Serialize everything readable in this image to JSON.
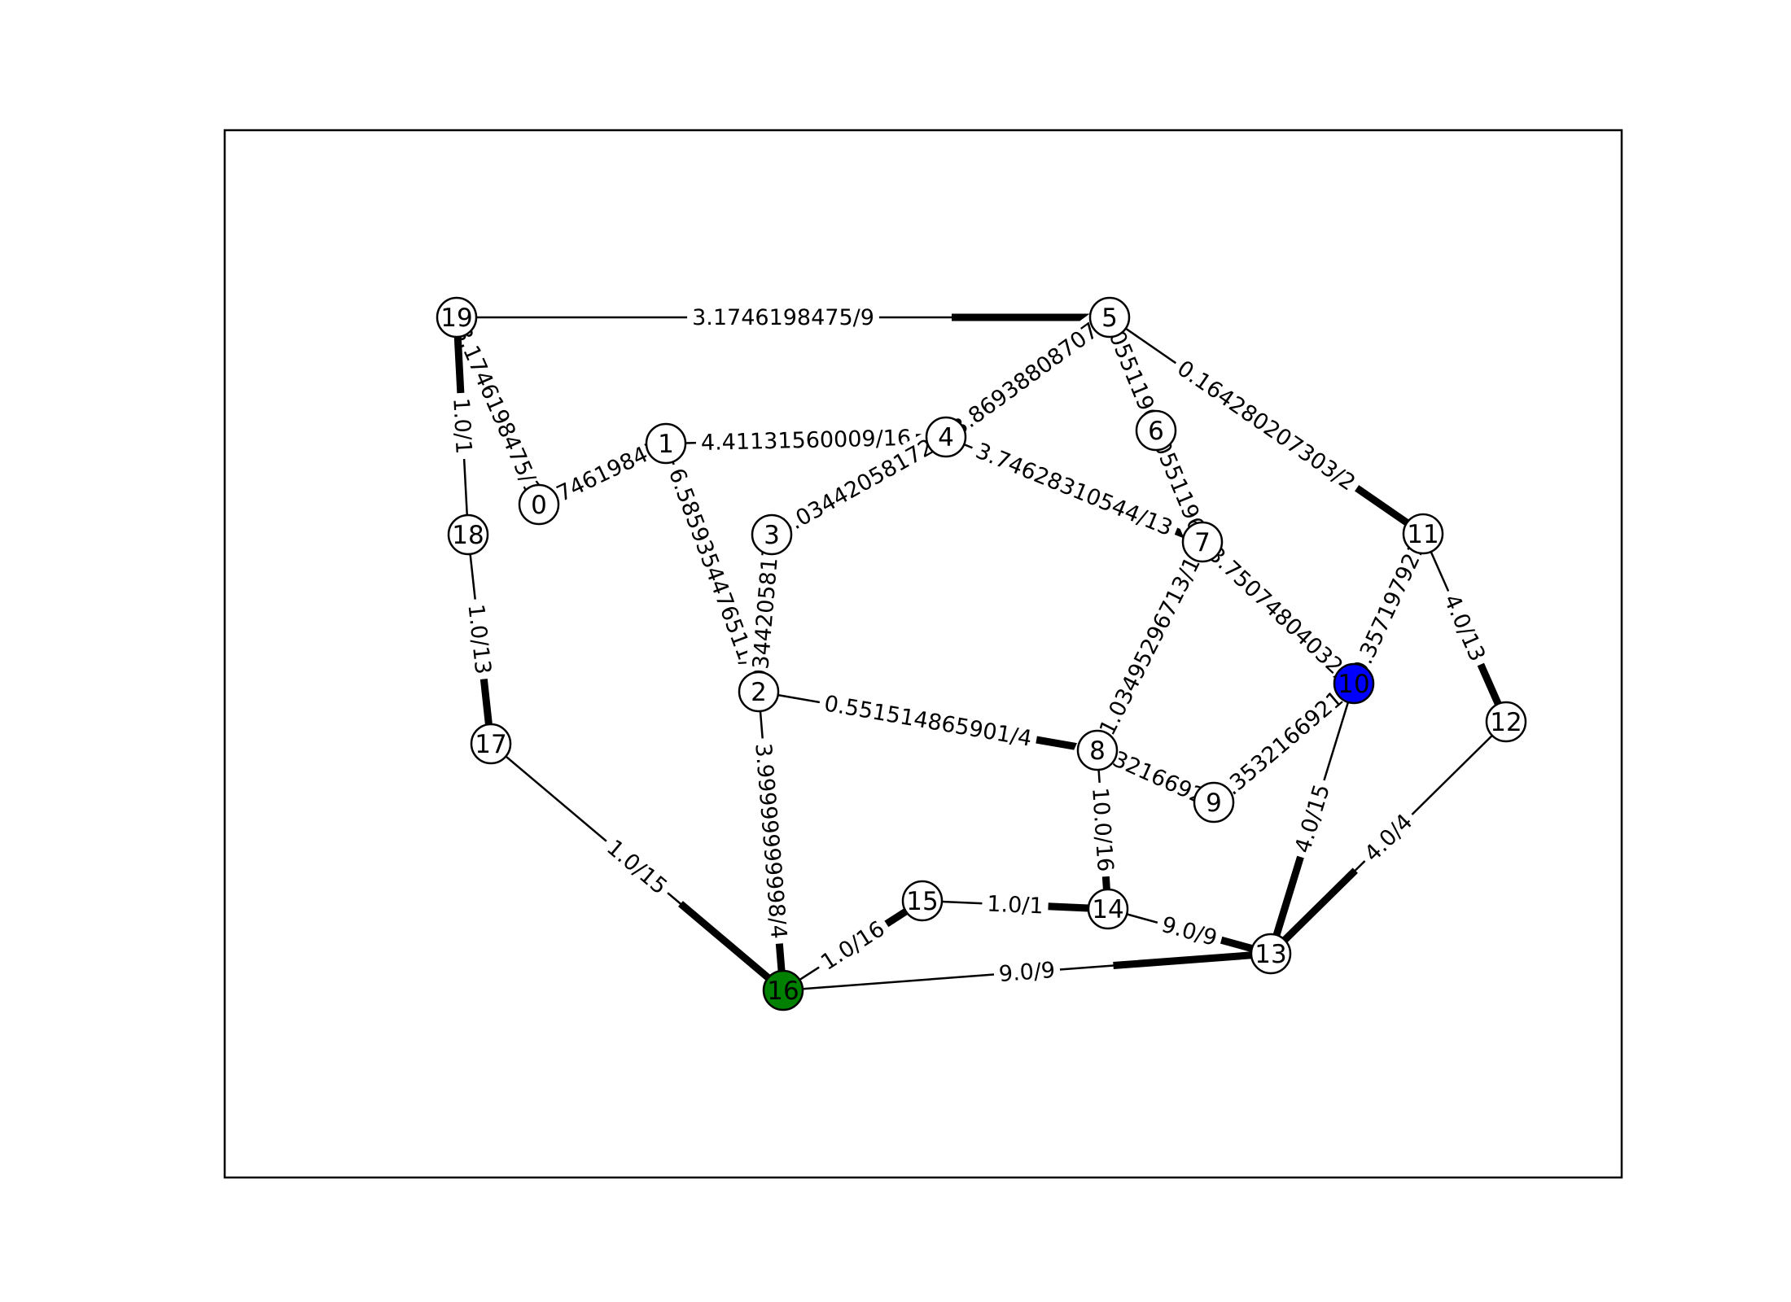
{
  "graph": {
    "nodes": [
      {
        "id": "0",
        "color": "#ffffff"
      },
      {
        "id": "1",
        "color": "#ffffff"
      },
      {
        "id": "2",
        "color": "#ffffff"
      },
      {
        "id": "3",
        "color": "#ffffff"
      },
      {
        "id": "4",
        "color": "#ffffff"
      },
      {
        "id": "5",
        "color": "#ffffff"
      },
      {
        "id": "6",
        "color": "#ffffff"
      },
      {
        "id": "7",
        "color": "#ffffff"
      },
      {
        "id": "8",
        "color": "#ffffff"
      },
      {
        "id": "9",
        "color": "#ffffff"
      },
      {
        "id": "10",
        "color": "#0000ff"
      },
      {
        "id": "11",
        "color": "#ffffff"
      },
      {
        "id": "12",
        "color": "#ffffff"
      },
      {
        "id": "13",
        "color": "#ffffff"
      },
      {
        "id": "14",
        "color": "#ffffff"
      },
      {
        "id": "15",
        "color": "#ffffff"
      },
      {
        "id": "16",
        "color": "#008000"
      },
      {
        "id": "17",
        "color": "#ffffff"
      },
      {
        "id": "18",
        "color": "#ffffff"
      },
      {
        "id": "19",
        "color": "#ffffff"
      }
    ],
    "edges": [
      {
        "source": "19",
        "target": "5",
        "label": "3.1746198475/9",
        "flow": 3.1746198475,
        "capacity": 9
      },
      {
        "source": "19",
        "target": "0",
        "label": "3.1746198475/1",
        "flow": 3.1746198475,
        "capacity": 1
      },
      {
        "source": "18",
        "target": "19",
        "label": "1.0/1",
        "flow": 1.0,
        "capacity": 1
      },
      {
        "source": "0",
        "target": "1",
        "label": "3.1746198475/",
        "flow": 3.1746198475,
        "capacity": null
      },
      {
        "source": "1",
        "target": "4",
        "label": "4.41131560009/16",
        "flow": 4.41131560009,
        "capacity": 16
      },
      {
        "source": "1",
        "target": "2",
        "label": "6.5859354476511/",
        "flow": 6.5859354476511,
        "capacity": null
      },
      {
        "source": "3",
        "target": "4",
        "label": "5.03442058172/",
        "flow": 5.03442058172,
        "capacity": null
      },
      {
        "source": "3",
        "target": "2",
        "label": "5.03442058172/",
        "flow": 5.03442058172,
        "capacity": null
      },
      {
        "source": "4",
        "target": "5",
        "label": "3.86938808707/",
        "flow": 3.86938808707,
        "capacity": null
      },
      {
        "source": "4",
        "target": "7",
        "label": "3.74628310544/13",
        "flow": 3.74628310544,
        "capacity": 13
      },
      {
        "source": "5",
        "target": "6",
        "label": "1.05511967",
        "flow": 1.05511967,
        "capacity": null
      },
      {
        "source": "5",
        "target": "11",
        "label": "0.164280207303/2",
        "flow": 0.164280207303,
        "capacity": 2
      },
      {
        "source": "6",
        "target": "7",
        "label": "1.05511967/",
        "flow": 1.05511967,
        "capacity": null
      },
      {
        "source": "7",
        "target": "10",
        "label": "3.75074804032/",
        "flow": 3.75074804032,
        "capacity": null
      },
      {
        "source": "7",
        "target": "8",
        "label": "1.03495296713/1",
        "flow": 1.03495296713,
        "capacity": 1
      },
      {
        "source": "11",
        "target": "10",
        "label": "0.357197921",
        "flow": 0.357197921,
        "capacity": null
      },
      {
        "source": "11",
        "target": "12",
        "label": "4.0/13",
        "flow": 4.0,
        "capacity": 13
      },
      {
        "source": "2",
        "target": "8",
        "label": "0.551514865901/4",
        "flow": 0.551514865901,
        "capacity": 4
      },
      {
        "source": "8",
        "target": "9",
        "label": "7.5321669215",
        "flow": 7.5321669215,
        "capacity": null
      },
      {
        "source": "9",
        "target": "10",
        "label": "1.35321669215",
        "flow": 1.35321669215,
        "capacity": null
      },
      {
        "source": "2",
        "target": "16",
        "label": "3.99999999998/4",
        "flow": 3.99999999998,
        "capacity": 4
      },
      {
        "source": "8",
        "target": "14",
        "label": "10.0/16",
        "flow": 10.0,
        "capacity": 16
      },
      {
        "source": "10",
        "target": "13",
        "label": "4.0/15",
        "flow": 4.0,
        "capacity": 15
      },
      {
        "source": "12",
        "target": "13",
        "label": "4.0/4",
        "flow": 4.0,
        "capacity": 4
      },
      {
        "source": "18",
        "target": "17",
        "label": "1.0/13",
        "flow": 1.0,
        "capacity": 13
      },
      {
        "source": "17",
        "target": "16",
        "label": "1.0/15",
        "flow": 1.0,
        "capacity": 15
      },
      {
        "source": "16",
        "target": "15",
        "label": "1.0/16",
        "flow": 1.0,
        "capacity": 16
      },
      {
        "source": "15",
        "target": "14",
        "label": "1.0/1",
        "flow": 1.0,
        "capacity": 1
      },
      {
        "source": "14",
        "target": "13",
        "label": "9.0/9",
        "flow": 9.0,
        "capacity": 9
      },
      {
        "source": "16",
        "target": "13",
        "label": "9.0/9",
        "flow": 9.0,
        "capacity": 9
      }
    ]
  }
}
